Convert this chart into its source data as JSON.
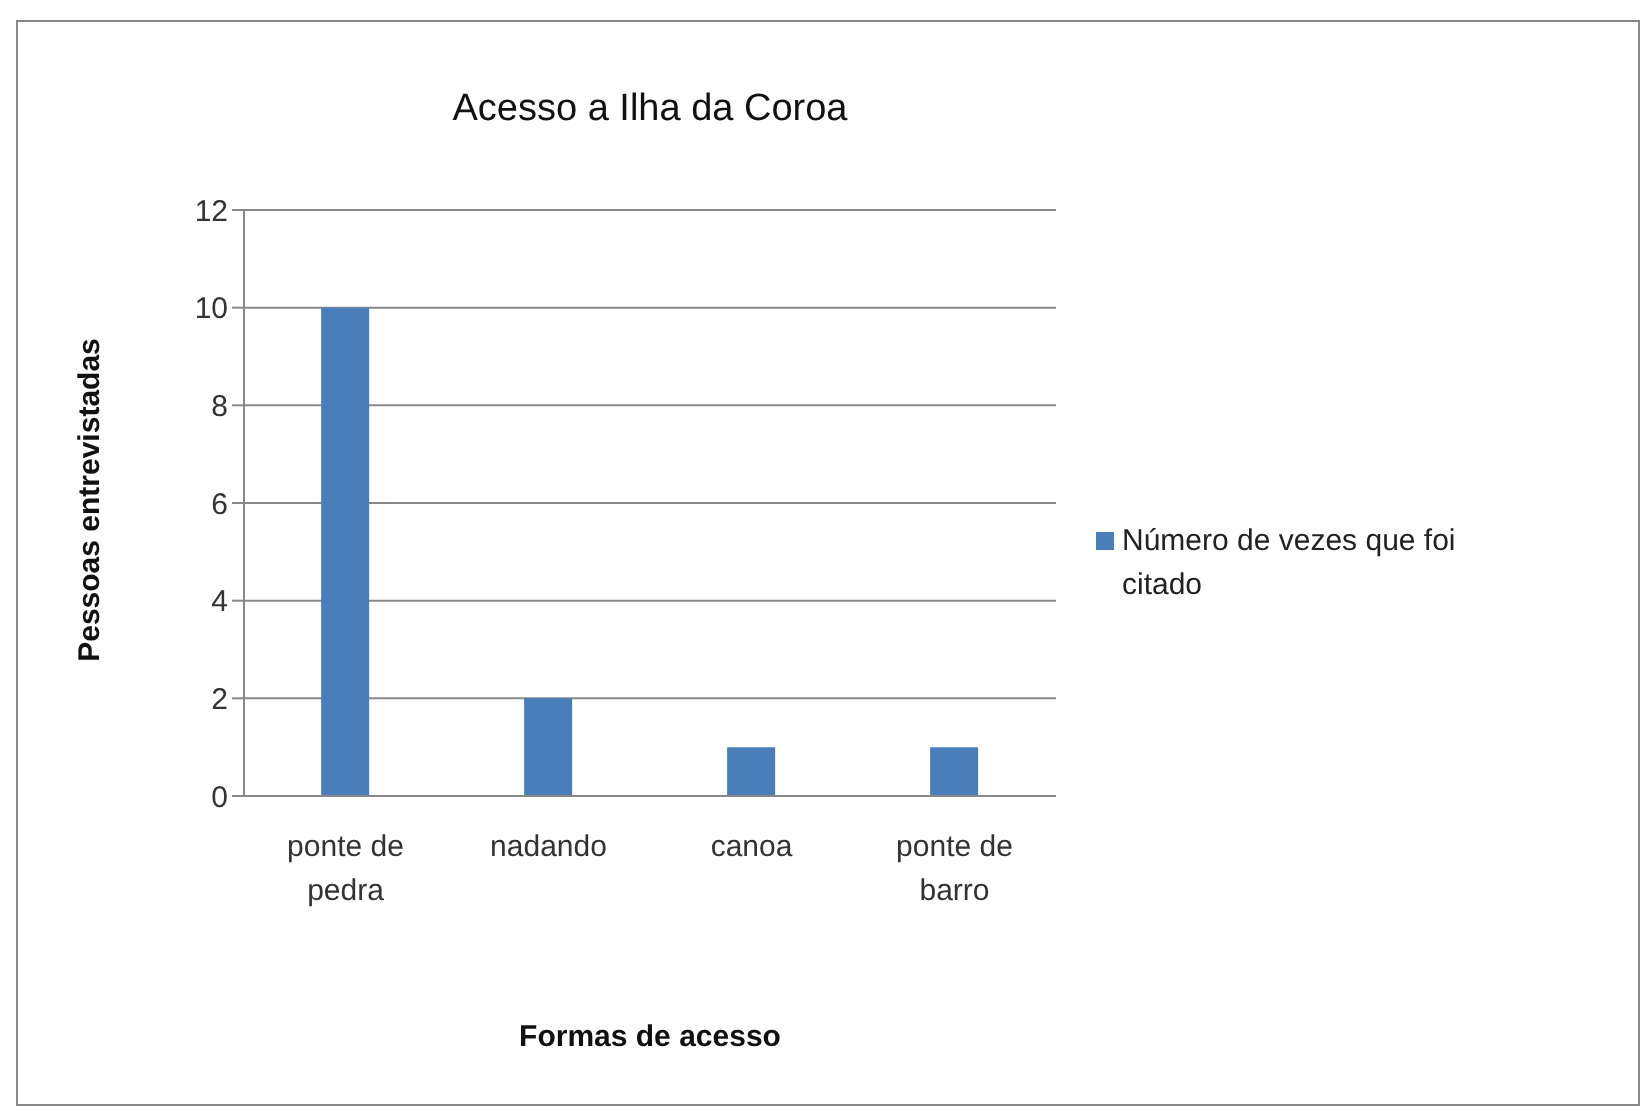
{
  "chart_data": {
    "type": "bar",
    "title": "Acesso a Ilha da Coroa",
    "xlabel": "Formas de acesso",
    "ylabel": "Pessoas entrevistadas",
    "categories": [
      "ponte de pedra",
      "nadando",
      "canoa",
      "ponte de barro"
    ],
    "series": [
      {
        "name": "Número de vezes que foi citado",
        "color": "#4a7ebb",
        "values": [
          10,
          2,
          1,
          1
        ]
      }
    ],
    "ylim": [
      0,
      12
    ],
    "yticks": [
      0,
      2,
      4,
      6,
      8,
      10,
      12
    ],
    "grid": "y",
    "legend": "right"
  }
}
